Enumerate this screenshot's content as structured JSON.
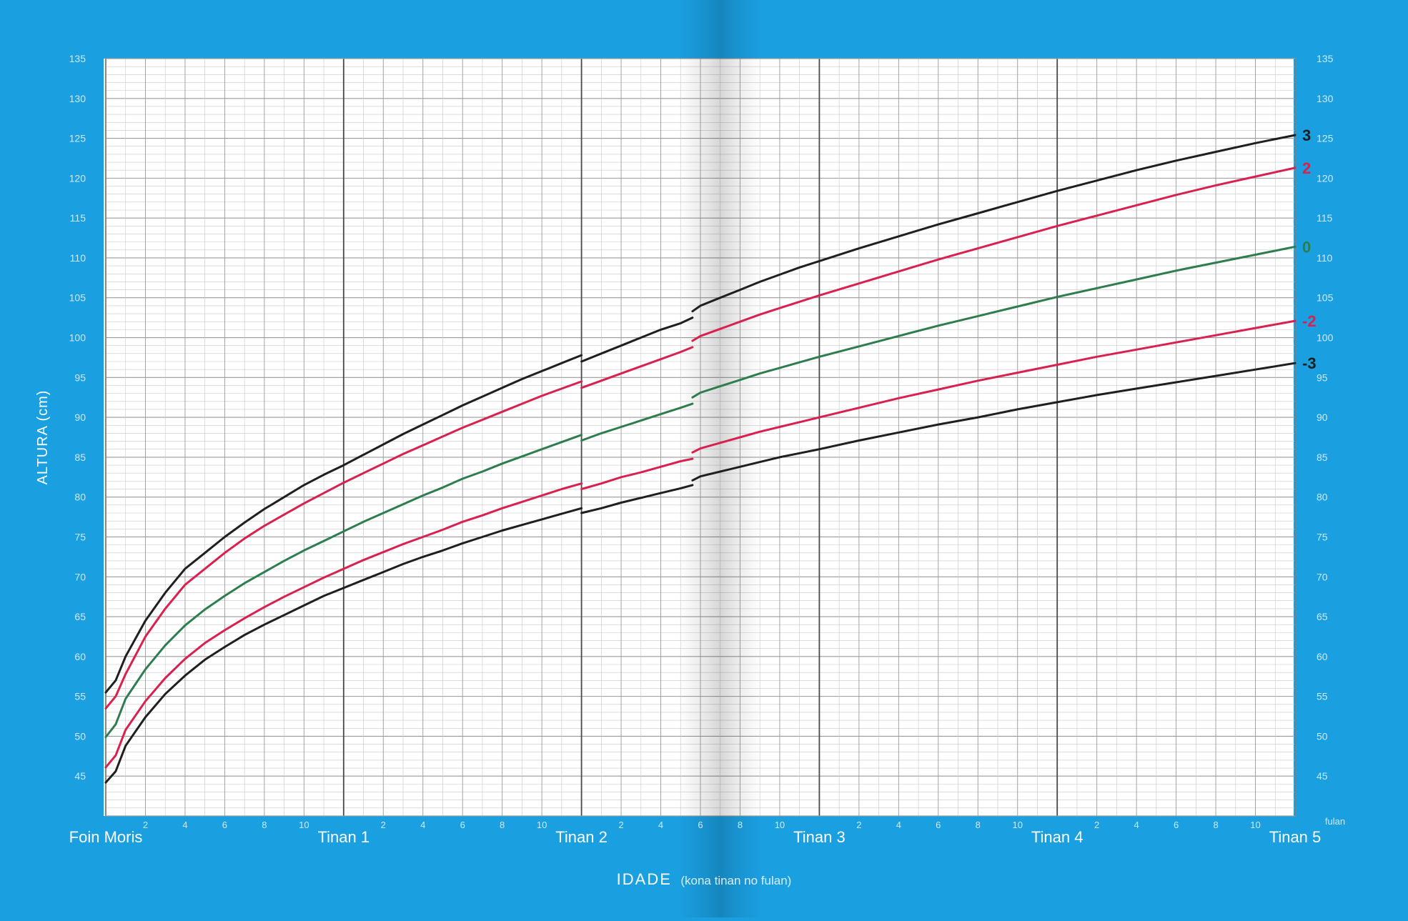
{
  "colors": {
    "background": "#1a9fe0",
    "paper": "#ffffff",
    "grid_minor": "#c8c8c8",
    "grid_major": "#9a9a9a",
    "year_line": "#4a4a4a",
    "label_white": "#ffffff",
    "tick_light": "#cfe9f8"
  },
  "chart_data": {
    "type": "line",
    "title": "",
    "xlabel": "IDADE",
    "xlabel_note": "(kona tinan no fulan)",
    "ylabel": "ALTURA (cm)",
    "x_unit_label": "fulan",
    "xlim": [
      0,
      60
    ],
    "ylim": [
      40,
      135
    ],
    "y_ticks": [
      45,
      50,
      55,
      60,
      65,
      70,
      75,
      80,
      85,
      90,
      95,
      100,
      105,
      110,
      115,
      120,
      125,
      130,
      135
    ],
    "year_labels": [
      {
        "month": 0,
        "label": "Foin Moris"
      },
      {
        "month": 12,
        "label": "Tinan 1"
      },
      {
        "month": 24,
        "label": "Tinan 2"
      },
      {
        "month": 36,
        "label": "Tinan 3"
      },
      {
        "month": 48,
        "label": "Tinan 4"
      },
      {
        "month": 60,
        "label": "Tinan 5"
      }
    ],
    "month_tick_labels": [
      "2",
      "4",
      "6",
      "8",
      "10"
    ],
    "grid": true,
    "series": [
      {
        "name": "3",
        "color": "#1f1f1f",
        "segments": [
          {
            "x": [
              0,
              0.5,
              1,
              2,
              3,
              4,
              5,
              6,
              7,
              8,
              9,
              10,
              11,
              12,
              13,
              14,
              15,
              16,
              17,
              18,
              19,
              20,
              21,
              22,
              23,
              24
            ],
            "y": [
              55.5,
              57,
              60,
              64.5,
              68,
              71,
              73,
              75,
              76.8,
              78.5,
              80,
              81.5,
              82.8,
              84,
              85.3,
              86.6,
              87.9,
              89.1,
              90.3,
              91.5,
              92.6,
              93.7,
              94.8,
              95.8,
              96.8,
              97.8
            ]
          },
          {
            "x": [
              24,
              25,
              26,
              27,
              28,
              29,
              29.6
            ],
            "y": [
              97,
              98,
              99,
              100,
              101,
              101.8,
              102.5
            ]
          },
          {
            "x": [
              29.6,
              30,
              31,
              32,
              33,
              34,
              35,
              36,
              38,
              40,
              42,
              44,
              46,
              48,
              50,
              52,
              54,
              56,
              58,
              60
            ],
            "y": [
              103.3,
              104,
              105,
              106,
              107,
              107.9,
              108.8,
              109.6,
              111.2,
              112.7,
              114.2,
              115.6,
              117,
              118.4,
              119.7,
              121,
              122.2,
              123.3,
              124.4,
              125.4
            ]
          }
        ]
      },
      {
        "name": "2",
        "color": "#d9214f",
        "segments": [
          {
            "x": [
              0,
              0.5,
              1,
              2,
              3,
              4,
              5,
              6,
              7,
              8,
              9,
              10,
              11,
              12,
              13,
              14,
              15,
              16,
              17,
              18,
              19,
              20,
              21,
              22,
              23,
              24
            ],
            "y": [
              53.5,
              55,
              57.8,
              62.5,
              66,
              69,
              71,
              73,
              74.8,
              76.4,
              77.8,
              79.2,
              80.5,
              81.8,
              83,
              84.2,
              85.4,
              86.5,
              87.6,
              88.7,
              89.7,
              90.7,
              91.7,
              92.7,
              93.6,
              94.5
            ]
          },
          {
            "x": [
              24,
              25,
              26,
              27,
              28,
              29,
              29.6
            ],
            "y": [
              93.7,
              94.6,
              95.5,
              96.4,
              97.3,
              98.2,
              98.8
            ]
          },
          {
            "x": [
              29.6,
              30,
              31,
              32,
              33,
              34,
              35,
              36,
              38,
              40,
              42,
              44,
              46,
              48,
              50,
              52,
              54,
              56,
              58,
              60
            ],
            "y": [
              99.6,
              100.2,
              101.1,
              102,
              102.9,
              103.7,
              104.5,
              105.3,
              106.8,
              108.3,
              109.8,
              111.2,
              112.6,
              114,
              115.3,
              116.6,
              117.9,
              119.1,
              120.2,
              121.3
            ]
          }
        ]
      },
      {
        "name": "0",
        "color": "#2e7d4e",
        "segments": [
          {
            "x": [
              0,
              0.5,
              1,
              2,
              3,
              4,
              5,
              6,
              7,
              8,
              9,
              10,
              11,
              12,
              13,
              14,
              15,
              16,
              17,
              18,
              19,
              20,
              21,
              22,
              23,
              24
            ],
            "y": [
              49.9,
              51.5,
              54.7,
              58.4,
              61.4,
              63.9,
              65.9,
              67.6,
              69.2,
              70.6,
              72,
              73.3,
              74.5,
              75.7,
              76.9,
              78,
              79.1,
              80.2,
              81.2,
              82.3,
              83.2,
              84.2,
              85.1,
              86,
              86.9,
              87.8
            ]
          },
          {
            "x": [
              24,
              25,
              26,
              27,
              28,
              29,
              29.6
            ],
            "y": [
              87.1,
              88,
              88.8,
              89.6,
              90.4,
              91.2,
              91.7
            ]
          },
          {
            "x": [
              29.6,
              30,
              31,
              32,
              33,
              34,
              35,
              36,
              38,
              40,
              42,
              44,
              46,
              48,
              50,
              52,
              54,
              56,
              58,
              60
            ],
            "y": [
              92.5,
              93.1,
              93.9,
              94.7,
              95.5,
              96.2,
              96.9,
              97.6,
              98.9,
              100.2,
              101.5,
              102.7,
              103.9,
              105.1,
              106.2,
              107.3,
              108.4,
              109.4,
              110.4,
              111.4
            ]
          }
        ]
      },
      {
        "name": "-2",
        "color": "#d9214f",
        "segments": [
          {
            "x": [
              0,
              0.5,
              1,
              2,
              3,
              4,
              5,
              6,
              7,
              8,
              9,
              10,
              11,
              12,
              13,
              14,
              15,
              16,
              17,
              18,
              19,
              20,
              21,
              22,
              23,
              24
            ],
            "y": [
              46.1,
              47.6,
              50.8,
              54.4,
              57.3,
              59.7,
              61.7,
              63.3,
              64.8,
              66.2,
              67.5,
              68.7,
              69.9,
              71,
              72.1,
              73.1,
              74.1,
              75,
              75.9,
              76.9,
              77.7,
              78.6,
              79.4,
              80.2,
              81,
              81.7
            ]
          },
          {
            "x": [
              24,
              25,
              26,
              27,
              28,
              29,
              29.6
            ],
            "y": [
              81,
              81.7,
              82.5,
              83.1,
              83.8,
              84.5,
              84.8
            ]
          },
          {
            "x": [
              29.6,
              30,
              31,
              32,
              33,
              34,
              35,
              36,
              38,
              40,
              42,
              44,
              46,
              48,
              50,
              52,
              54,
              56,
              58,
              60
            ],
            "y": [
              85.6,
              86.1,
              86.8,
              87.5,
              88.2,
              88.8,
              89.4,
              90,
              91.2,
              92.4,
              93.5,
              94.6,
              95.6,
              96.6,
              97.6,
              98.5,
              99.4,
              100.3,
              101.2,
              102.1
            ]
          }
        ]
      },
      {
        "name": "-3",
        "color": "#1f1f1f",
        "segments": [
          {
            "x": [
              0,
              0.5,
              1,
              2,
              3,
              4,
              5,
              6,
              7,
              8,
              9,
              10,
              11,
              12,
              13,
              14,
              15,
              16,
              17,
              18,
              19,
              20,
              21,
              22,
              23,
              24
            ],
            "y": [
              44.2,
              45.6,
              48.8,
              52.4,
              55.3,
              57.6,
              59.6,
              61.2,
              62.7,
              64,
              65.2,
              66.4,
              67.6,
              68.6,
              69.6,
              70.6,
              71.6,
              72.5,
              73.3,
              74.2,
              75,
              75.8,
              76.5,
              77.2,
              77.9,
              78.6
            ]
          },
          {
            "x": [
              24,
              25,
              26,
              27,
              28,
              29,
              29.6
            ],
            "y": [
              78,
              78.6,
              79.3,
              79.9,
              80.5,
              81.1,
              81.5
            ]
          },
          {
            "x": [
              29.6,
              30,
              31,
              32,
              33,
              34,
              35,
              36,
              38,
              40,
              42,
              44,
              46,
              48,
              50,
              52,
              54,
              56,
              58,
              60
            ],
            "y": [
              82.1,
              82.6,
              83.2,
              83.8,
              84.4,
              85,
              85.5,
              86,
              87.1,
              88.1,
              89.1,
              90,
              91,
              91.9,
              92.8,
              93.6,
              94.4,
              95.2,
              96,
              96.8
            ]
          }
        ]
      }
    ],
    "series_end_labels": [
      {
        "text": "3",
        "color": "#1f1f1f",
        "y": 125.4
      },
      {
        "text": "2",
        "color": "#d9214f",
        "y": 121.3
      },
      {
        "text": "0",
        "color": "#2e7d4e",
        "y": 111.4
      },
      {
        "text": "-2",
        "color": "#d9214f",
        "y": 102.1
      },
      {
        "text": "-3",
        "color": "#1f1f1f",
        "y": 96.8
      }
    ]
  }
}
